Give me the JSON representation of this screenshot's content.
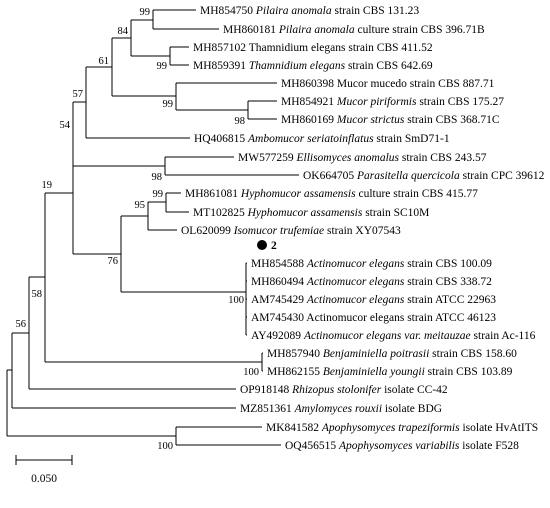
{
  "tree": {
    "taxa": [
      {
        "accession": "MH854750",
        "species": "Pilaira anomala",
        "italic": true,
        "rest": " strain CBS 131.23"
      },
      {
        "accession": "MH860181",
        "species": "Pilaira anomala",
        "italic": true,
        "rest": " culture strain CBS 396.71B"
      },
      {
        "accession": "MH857102",
        "species": "Thamnidium elegans",
        "italic": false,
        "rest": " strain CBS 411.52"
      },
      {
        "accession": "MH859391",
        "species": "Thamnidium elegans",
        "italic": true,
        "rest": " strain CBS 642.69"
      },
      {
        "accession": "MH860398",
        "species": "Mucor mucedo",
        "italic": false,
        "rest": " strain CBS 887.71"
      },
      {
        "accession": "MH854921",
        "species": "Mucor piriformis",
        "italic": true,
        "rest": " strain CBS 175.27"
      },
      {
        "accession": "MH860169",
        "species": "Mucor strictus",
        "italic": true,
        "rest": " strain CBS 368.71C"
      },
      {
        "accession": "HQ406815",
        "species": "Ambomucor seriatoinflatus",
        "italic": true,
        "rest": " strain SmD71-1"
      },
      {
        "accession": "MW577259",
        "species": "Ellisomyces anomalus",
        "italic": true,
        "rest": " strain CBS 243.57"
      },
      {
        "accession": "OK664705",
        "species": "Parasitella quercicola",
        "italic": true,
        "rest": " strain CPC 39612"
      },
      {
        "accession": "MH861081",
        "species": "Hyphomucor assamensis",
        "italic": true,
        "rest": " culture strain CBS 415.77"
      },
      {
        "accession": "MT102825",
        "species": "Hyphomucor assamensis",
        "italic": true,
        "rest": " strain SC10M"
      },
      {
        "accession": "OL620099",
        "species": "Isomucor trufemiae",
        "italic": true,
        "rest": " strain XY07543"
      },
      {
        "accession": "",
        "species": "2",
        "italic": false,
        "bold": true,
        "marker": "filled-circle",
        "rest": ""
      },
      {
        "accession": "MH854588",
        "species": "Actinomucor elegans",
        "italic": true,
        "rest": " strain CBS 100.09"
      },
      {
        "accession": "MH860494",
        "species": "Actinomucor elegans",
        "italic": true,
        "rest": " strain CBS 338.72"
      },
      {
        "accession": "AM745429",
        "species": "Actinomucor elegans",
        "italic": true,
        "rest": " strain ATCC 22963"
      },
      {
        "accession": "AM745430",
        "species": "Actinomucor elegans",
        "italic": false,
        "rest": " strain ATCC 46123"
      },
      {
        "accession": "AY492089",
        "species": "Actinomucor elegans var. meitauzae",
        "italic": true,
        "rest": " strain Ac-116"
      },
      {
        "accession": "MH857940",
        "species": "Benjaminiella poitrasii",
        "italic": true,
        "rest": " strain CBS 158.60"
      },
      {
        "accession": "MH862155",
        "species": "Benjaminiella youngii",
        "italic": true,
        "rest": " strain CBS 103.89"
      },
      {
        "accession": "OP918148",
        "species": "Rhizopus stolonifer",
        "italic": true,
        "rest": " isolate CC-42"
      },
      {
        "accession": "MZ851361",
        "species": "Amylomyces rouxii",
        "italic": true,
        "rest": " isolate BDG"
      },
      {
        "accession": "MK841582",
        "species": "Apophysomyces trapeziformis",
        "italic": true,
        "rest": " isolate HvAtITS"
      },
      {
        "accession": "OQ456515",
        "species": "Apophysomyces variabilis",
        "italic": true,
        "rest": " isolate F528"
      }
    ],
    "support_values": {
      "pilaira": "99",
      "pilaira_thamnidium": "84",
      "thamnidium": "99",
      "mucor_group": "61",
      "mucor_pair": "98",
      "mucor_clade": "99",
      "upper_clade": "57",
      "ellis_paras": "98",
      "upper_group": "54",
      "hyphomucor": "99",
      "hyphomucor_isomucor": "95",
      "actinomucor_group": "76",
      "actinomucor": "100",
      "mid_split": "19",
      "ingroup": "58",
      "benjaminiella": "100",
      "with_rhizopus": "56",
      "apophysomyces": "100"
    },
    "scale_bar": {
      "label": "0.050"
    }
  }
}
